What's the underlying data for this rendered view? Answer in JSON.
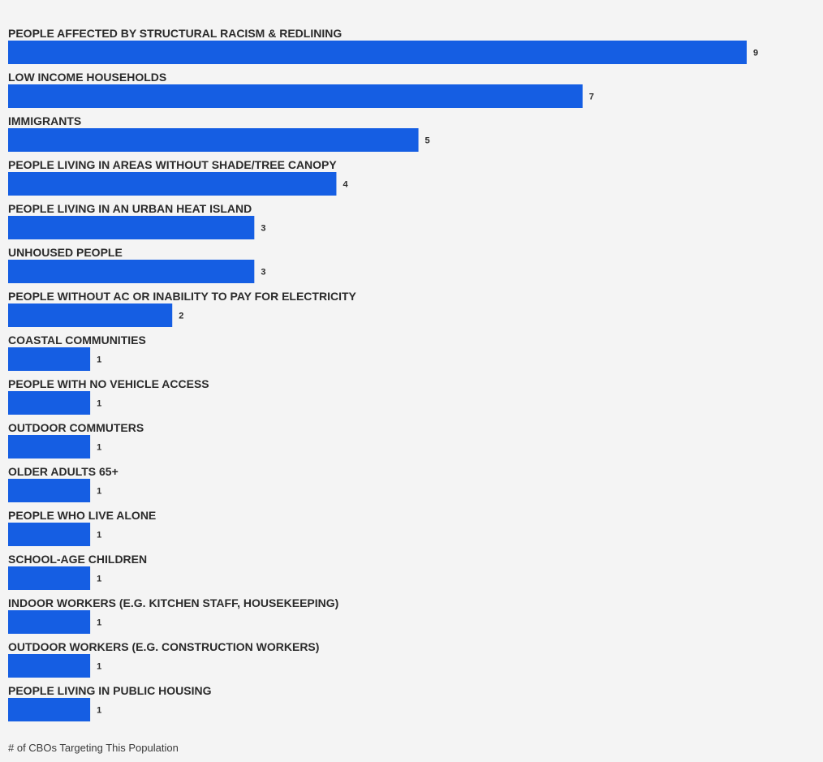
{
  "chart_data": {
    "type": "bar",
    "orientation": "horizontal",
    "categories": [
      "PEOPLE AFFECTED BY STRUCTURAL RACISM & REDLINING",
      "LOW INCOME HOUSEHOLDS",
      "IMMIGRANTS",
      "PEOPLE LIVING IN AREAS WITHOUT SHADE/TREE CANOPY",
      "PEOPLE LIVING IN AN URBAN HEAT ISLAND",
      "UNHOUSED PEOPLE",
      "PEOPLE WITHOUT AC OR INABILITY TO PAY FOR ELECTRICITY",
      "COASTAL COMMUNITIES",
      "PEOPLE WITH NO VEHICLE ACCESS",
      "OUTDOOR COMMUTERS",
      "OLDER ADULTS 65+",
      "PEOPLE WHO LIVE ALONE",
      "SCHOOL-AGE CHILDREN",
      "INDOOR WORKERS (E.G. KITCHEN STAFF, HOUSEKEEPING)",
      "OUTDOOR WORKERS (E.G. CONSTRUCTION WORKERS)",
      "PEOPLE LIVING IN PUBLIC HOUSING"
    ],
    "values": [
      9,
      7,
      5,
      4,
      3,
      3,
      2,
      1,
      1,
      1,
      1,
      1,
      1,
      1,
      1,
      1
    ],
    "xlabel": "# of CBOs Targeting This Population",
    "xlim": [
      0,
      9
    ],
    "grid": false,
    "bar_color": "#155ee3"
  }
}
